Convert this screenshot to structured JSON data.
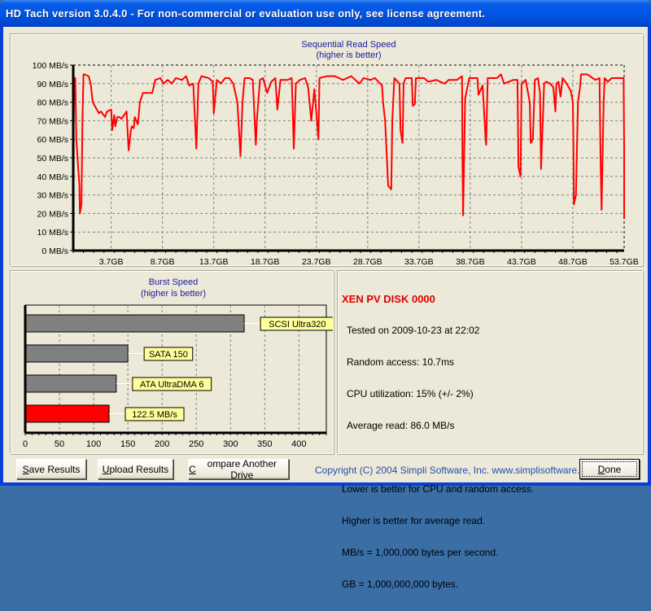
{
  "window": {
    "title": "HD Tach version 3.0.4.0  - For non-commercial or evaluation use only, see license agreement."
  },
  "colors": {
    "read_line": "#ff0000",
    "burst_drive": "#ff0000",
    "burst_reference": "#808080",
    "label_bg": "#ffff99",
    "chart_title": "#1a1aa0"
  },
  "chart_data": [
    {
      "type": "line",
      "title": "Sequential Read Speed",
      "subtitle": "(higher is better)",
      "y_unit": "MB/s",
      "ylim": [
        0,
        100
      ],
      "xlim": [
        0,
        53.7
      ],
      "grid": true,
      "y_ticks": [
        "100 MB/s",
        "90 MB/s",
        "80 MB/s",
        "70 MB/s",
        "60 MB/s",
        "50 MB/s",
        "40 MB/s",
        "30 MB/s",
        "20 MB/s",
        "10 MB/s",
        "0 MB/s"
      ],
      "x_ticks": [
        "3.7GB",
        "8.7GB",
        "13.7GB",
        "18.7GB",
        "23.7GB",
        "28.7GB",
        "33.7GB",
        "38.7GB",
        "43.7GB",
        "48.7GB",
        "53.7GB"
      ],
      "x_tick_values": [
        3.7,
        8.7,
        13.7,
        18.7,
        23.7,
        28.7,
        33.7,
        38.7,
        43.7,
        48.7,
        53.7
      ],
      "points": [
        [
          0,
          50
        ],
        [
          0.1,
          93
        ],
        [
          0.2,
          93
        ],
        [
          0.3,
          60
        ],
        [
          0.6,
          35
        ],
        [
          0.65,
          20
        ],
        [
          0.8,
          25
        ],
        [
          0.9,
          70
        ],
        [
          1.0,
          95
        ],
        [
          1.1,
          95
        ],
        [
          1.5,
          94
        ],
        [
          1.7,
          90
        ],
        [
          1.9,
          80
        ],
        [
          2.5,
          74
        ],
        [
          2.7,
          75
        ],
        [
          3.1,
          72
        ],
        [
          3.3,
          75
        ],
        [
          3.7,
          76
        ],
        [
          3.8,
          65
        ],
        [
          4.0,
          73
        ],
        [
          4.1,
          67
        ],
        [
          4.3,
          72
        ],
        [
          4.5,
          72
        ],
        [
          4.7,
          71
        ],
        [
          5.2,
          75
        ],
        [
          5.4,
          54
        ],
        [
          5.6,
          64
        ],
        [
          5.7,
          67
        ],
        [
          5.9,
          66
        ],
        [
          6.0,
          72
        ],
        [
          6.3,
          68
        ],
        [
          6.5,
          80
        ],
        [
          6.8,
          85
        ],
        [
          7.2,
          85
        ],
        [
          7.7,
          85
        ],
        [
          8.0,
          92
        ],
        [
          8.5,
          93
        ],
        [
          8.8,
          90
        ],
        [
          9.2,
          92
        ],
        [
          9.6,
          90
        ],
        [
          10.0,
          93
        ],
        [
          10.6,
          92
        ],
        [
          11.0,
          94
        ],
        [
          11.3,
          89
        ],
        [
          11.7,
          90
        ],
        [
          12.0,
          55
        ],
        [
          12.2,
          90
        ],
        [
          12.5,
          94
        ],
        [
          13.2,
          93
        ],
        [
          13.6,
          91
        ],
        [
          13.7,
          74
        ],
        [
          14.0,
          92
        ],
        [
          14.4,
          90
        ],
        [
          14.8,
          93
        ],
        [
          15.2,
          93
        ],
        [
          15.6,
          90
        ],
        [
          16.0,
          80
        ],
        [
          16.3,
          51
        ],
        [
          16.5,
          80
        ],
        [
          16.7,
          93
        ],
        [
          17.2,
          93
        ],
        [
          17.5,
          92
        ],
        [
          17.8,
          57
        ],
        [
          17.9,
          70
        ],
        [
          18.2,
          92
        ],
        [
          18.5,
          93
        ],
        [
          18.9,
          85
        ],
        [
          19.3,
          91
        ],
        [
          19.7,
          93
        ],
        [
          19.9,
          76
        ],
        [
          20.2,
          92
        ],
        [
          20.6,
          92
        ],
        [
          20.9,
          92
        ],
        [
          21.3,
          93
        ],
        [
          21.5,
          55
        ],
        [
          21.7,
          90
        ],
        [
          22.1,
          92
        ],
        [
          22.6,
          93
        ],
        [
          22.9,
          88
        ],
        [
          23.2,
          70
        ],
        [
          23.5,
          87
        ],
        [
          23.7,
          74
        ],
        [
          23.9,
          60
        ],
        [
          24.0,
          93
        ],
        [
          24.7,
          94
        ],
        [
          25.5,
          94
        ],
        [
          26.3,
          92
        ],
        [
          27.1,
          94
        ],
        [
          27.9,
          90
        ],
        [
          28.3,
          93
        ],
        [
          29.0,
          92
        ],
        [
          29.4,
          93
        ],
        [
          30.1,
          89
        ],
        [
          30.2,
          80
        ],
        [
          30.4,
          70
        ],
        [
          30.7,
          35
        ],
        [
          31.0,
          33
        ],
        [
          31.1,
          70
        ],
        [
          31.3,
          93
        ],
        [
          31.8,
          90
        ],
        [
          31.9,
          65
        ],
        [
          32.1,
          58
        ],
        [
          32.2,
          90
        ],
        [
          32.4,
          93
        ],
        [
          33.0,
          93
        ],
        [
          33.1,
          78
        ],
        [
          33.3,
          79
        ],
        [
          33.4,
          93
        ],
        [
          34.2,
          93
        ],
        [
          34.6,
          91
        ],
        [
          35.4,
          92
        ],
        [
          36.2,
          90
        ],
        [
          36.6,
          92
        ],
        [
          37.4,
          92
        ],
        [
          37.9,
          94
        ],
        [
          37.94,
          50
        ],
        [
          38.0,
          19
        ],
        [
          38.2,
          82
        ],
        [
          38.6,
          93
        ],
        [
          39.4,
          93
        ],
        [
          39.5,
          84
        ],
        [
          39.9,
          89
        ],
        [
          40.2,
          60
        ],
        [
          40.25,
          57
        ],
        [
          40.4,
          93
        ],
        [
          41.3,
          93
        ],
        [
          41.7,
          95
        ],
        [
          42.0,
          90
        ],
        [
          42.9,
          92
        ],
        [
          43.3,
          92
        ],
        [
          43.35,
          70
        ],
        [
          43.4,
          45
        ],
        [
          43.6,
          40
        ],
        [
          43.7,
          90
        ],
        [
          44.1,
          92
        ],
        [
          44.5,
          80
        ],
        [
          44.6,
          58
        ],
        [
          44.8,
          60
        ],
        [
          45.0,
          92
        ],
        [
          45.3,
          93
        ],
        [
          45.5,
          85
        ],
        [
          45.6,
          44
        ],
        [
          45.7,
          60
        ],
        [
          45.9,
          90
        ],
        [
          46.1,
          91
        ],
        [
          46.5,
          90
        ],
        [
          46.8,
          88
        ],
        [
          47.0,
          75
        ],
        [
          47.1,
          90
        ],
        [
          47.3,
          91
        ],
        [
          47.5,
          83
        ],
        [
          47.7,
          93
        ],
        [
          48.1,
          90
        ],
        [
          48.5,
          86
        ],
        [
          48.7,
          80
        ],
        [
          48.75,
          60
        ],
        [
          48.8,
          25
        ],
        [
          49.0,
          30
        ],
        [
          49.2,
          80
        ],
        [
          49.4,
          88
        ],
        [
          49.5,
          95
        ],
        [
          50.1,
          95
        ],
        [
          50.9,
          92
        ],
        [
          51.3,
          93
        ],
        [
          51.4,
          50
        ],
        [
          51.5,
          22
        ],
        [
          51.7,
          80
        ],
        [
          51.8,
          93
        ],
        [
          52.1,
          91
        ],
        [
          52.5,
          93
        ],
        [
          53.2,
          93
        ],
        [
          53.65,
          93
        ],
        [
          53.7,
          55
        ],
        [
          53.7,
          17
        ]
      ]
    },
    {
      "type": "bar",
      "orientation": "horizontal",
      "title": "Burst Speed",
      "subtitle": "(higher is better)",
      "xlim": [
        0,
        440
      ],
      "grid": true,
      "x_ticks": [
        0,
        50,
        100,
        150,
        200,
        250,
        300,
        350,
        400
      ],
      "bars": [
        {
          "label": "SCSI Ultra320",
          "value": 320,
          "color": "#808080"
        },
        {
          "label": "SATA 150",
          "value": 150,
          "color": "#808080"
        },
        {
          "label": "ATA UltraDMA 6",
          "value": 133,
          "color": "#808080"
        },
        {
          "label": "122.5 MB/s",
          "value": 122.5,
          "color": "#ff0000"
        }
      ]
    }
  ],
  "results": {
    "disk_name": "XEN PV DISK 0000",
    "tested_on": "Tested on 2009-10-23 at 22:02",
    "random_access": "Random access: 10.7ms",
    "cpu": "CPU utilization: 15% (+/- 2%)",
    "average_read": "Average read: 86.0 MB/s",
    "notes": [
      "Lower is better for CPU and random access.",
      "Higher is better for average read.",
      "MB/s = 1,000,000 bytes per second.",
      "GB = 1,000,000,000 bytes."
    ]
  },
  "buttons": {
    "save": {
      "mnemonic": "S",
      "rest": "ave Results"
    },
    "upload": {
      "mnemonic": "U",
      "rest": "pload Results"
    },
    "compare": {
      "mnemonic": "C",
      "rest": "ompare Another Drive"
    },
    "done": {
      "mnemonic": "D",
      "rest": "one"
    }
  },
  "footer": {
    "copyright": "Copyright (C) 2004 Simpli Software, Inc. www.simplisoftware.com"
  }
}
